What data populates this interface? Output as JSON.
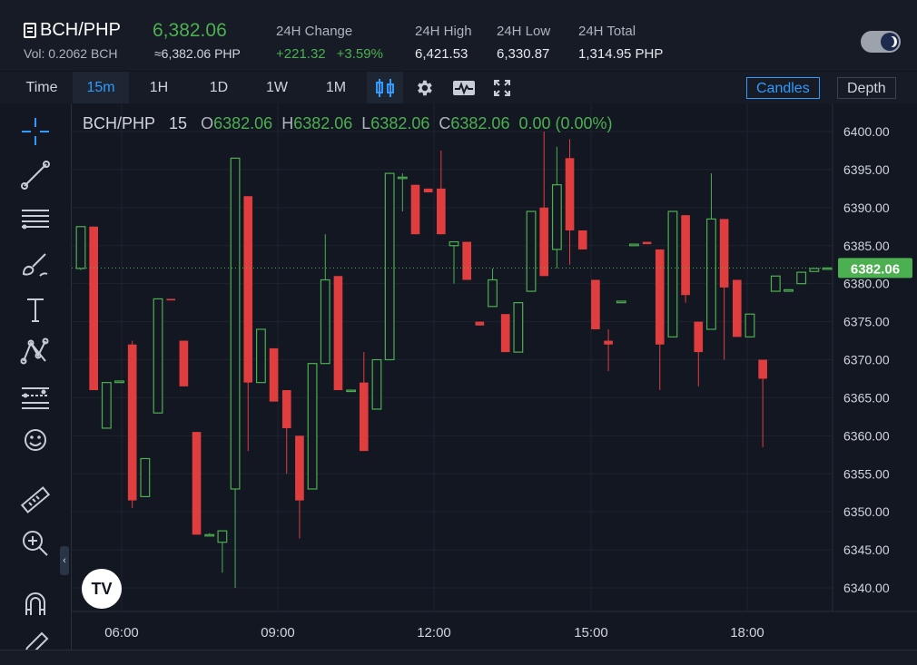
{
  "header": {
    "pair": "BCH/PHP",
    "price": "6,382.06",
    "volume": "Vol: 0.2062 BCH",
    "approx": "≈6,382.06 PHP",
    "change_label": "24H Change",
    "change_abs": "+221.32",
    "change_pct": "+3.59%",
    "high_label": "24H High",
    "high_value": "6,421.53",
    "low_label": "24H Low",
    "low_value": "6,330.87",
    "total_label": "24H Total",
    "total_value": "1,314.95 PHP"
  },
  "toolbar": {
    "intervals": [
      "Time",
      "15m",
      "1H",
      "1D",
      "1W",
      "1M"
    ],
    "active_interval": "15m",
    "candles_label": "Candles",
    "depth_label": "Depth"
  },
  "legend": {
    "symbol": "BCH/PHP",
    "interval": "15",
    "o_label": "O",
    "o_value": "6382.06",
    "h_label": "H",
    "h_value": "6382.06",
    "l_label": "L",
    "l_value": "6382.06",
    "c_label": "C",
    "c_value": "6382.06",
    "change": "0.00 (0.00%)"
  },
  "colors": {
    "up": "#4caf50",
    "down": "#e03e3e",
    "accent": "#2f9bff",
    "background": "#131722"
  },
  "chart_data": {
    "type": "candlestick",
    "pair": "BCH/PHP",
    "interval": "15",
    "ylim": [
      6337,
      6404
    ],
    "y_ticks": [
      "6400.00",
      "6395.00",
      "6390.00",
      "6385.00",
      "6380.00",
      "6375.00",
      "6370.00",
      "6365.00",
      "6360.00",
      "6355.00",
      "6350.00",
      "6345.00",
      "6340.00"
    ],
    "x_ticks": [
      "06:00",
      "09:00",
      "12:00",
      "15:00",
      "18:00"
    ],
    "last_price_label": "6382.06",
    "last_price": 6382.06,
    "candles": [
      {
        "o": 6382.0,
        "h": 6387.5,
        "l": 6381.8,
        "c": 6387.5
      },
      {
        "o": 6387.5,
        "h": 6387.5,
        "l": 6366.0,
        "c": 6366.0
      },
      {
        "o": 6361.0,
        "h": 6367.0,
        "l": 6361.0,
        "c": 6367.0
      },
      {
        "o": 6367.0,
        "h": 6367.2,
        "l": 6367.0,
        "c": 6367.2
      },
      {
        "o": 6372.0,
        "h": 6372.5,
        "l": 6350.5,
        "c": 6351.5
      },
      {
        "o": 6352.0,
        "h": 6357.0,
        "l": 6352.0,
        "c": 6357.0
      },
      {
        "o": 6363.0,
        "h": 6378.0,
        "l": 6363.0,
        "c": 6378.0
      },
      {
        "o": 6378.0,
        "h": 6378.0,
        "l": 6377.8,
        "c": 6377.8
      },
      {
        "o": 6372.5,
        "h": 6372.5,
        "l": 6366.5,
        "c": 6366.5
      },
      {
        "o": 6360.5,
        "h": 6360.5,
        "l": 6347.0,
        "c": 6347.0
      },
      {
        "o": 6347.0,
        "h": 6347.2,
        "l": 6347.0,
        "c": 6347.0
      },
      {
        "o": 6346.0,
        "h": 6347.5,
        "l": 6342.0,
        "c": 6347.5
      },
      {
        "o": 6353.0,
        "h": 6396.5,
        "l": 6340.0,
        "c": 6396.5
      },
      {
        "o": 6391.5,
        "h": 6391.5,
        "l": 6358.0,
        "c": 6367.0
      },
      {
        "o": 6367.0,
        "h": 6374.0,
        "l": 6367.0,
        "c": 6374.0
      },
      {
        "o": 6371.5,
        "h": 6371.5,
        "l": 6364.5,
        "c": 6364.5
      },
      {
        "o": 6366.0,
        "h": 6366.0,
        "l": 6355.0,
        "c": 6361.0
      },
      {
        "o": 6360.0,
        "h": 6360.0,
        "l": 6346.5,
        "c": 6351.5
      },
      {
        "o": 6353.0,
        "h": 6369.5,
        "l": 6353.0,
        "c": 6369.5
      },
      {
        "o": 6369.5,
        "h": 6386.5,
        "l": 6369.5,
        "c": 6380.5
      },
      {
        "o": 6381.0,
        "h": 6381.0,
        "l": 6366.0,
        "c": 6366.0
      },
      {
        "o": 6366.0,
        "h": 6366.0,
        "l": 6366.0,
        "c": 6366.0
      },
      {
        "o": 6367.0,
        "h": 6371.0,
        "l": 6358.0,
        "c": 6358.0
      },
      {
        "o": 6363.5,
        "h": 6370.0,
        "l": 6363.5,
        "c": 6370.0
      },
      {
        "o": 6370.0,
        "h": 6394.5,
        "l": 6370.0,
        "c": 6394.5
      },
      {
        "o": 6394.0,
        "h": 6394.5,
        "l": 6389.5,
        "c": 6394.0
      },
      {
        "o": 6393.0,
        "h": 6393.0,
        "l": 6386.5,
        "c": 6386.5
      },
      {
        "o": 6392.5,
        "h": 6392.5,
        "l": 6392.0,
        "c": 6392.0
      },
      {
        "o": 6392.5,
        "h": 6397.5,
        "l": 6386.5,
        "c": 6386.5
      },
      {
        "o": 6385.0,
        "h": 6385.5,
        "l": 6380.0,
        "c": 6385.5
      },
      {
        "o": 6385.5,
        "h": 6385.5,
        "l": 6380.5,
        "c": 6380.5
      },
      {
        "o": 6375.0,
        "h": 6375.0,
        "l": 6374.5,
        "c": 6374.5
      },
      {
        "o": 6377.0,
        "h": 6382.0,
        "l": 6377.0,
        "c": 6380.5
      },
      {
        "o": 6376.0,
        "h": 6376.0,
        "l": 6371.0,
        "c": 6371.0
      },
      {
        "o": 6371.0,
        "h": 6377.5,
        "l": 6371.0,
        "c": 6377.5
      },
      {
        "o": 6379.0,
        "h": 6389.5,
        "l": 6379.0,
        "c": 6389.5
      },
      {
        "o": 6390.0,
        "h": 6400.0,
        "l": 6381.0,
        "c": 6381.0
      },
      {
        "o": 6384.5,
        "h": 6398.0,
        "l": 6382.0,
        "c": 6393.0
      },
      {
        "o": 6396.5,
        "h": 6399.0,
        "l": 6382.5,
        "c": 6387.0
      },
      {
        "o": 6387.0,
        "h": 6387.0,
        "l": 6384.5,
        "c": 6384.5
      },
      {
        "o": 6380.5,
        "h": 6380.5,
        "l": 6374.0,
        "c": 6374.0
      },
      {
        "o": 6372.5,
        "h": 6374.0,
        "l": 6368.5,
        "c": 6372.0
      },
      {
        "o": 6377.5,
        "h": 6377.7,
        "l": 6377.5,
        "c": 6377.7
      },
      {
        "o": 6385.0,
        "h": 6385.2,
        "l": 6385.0,
        "c": 6385.2
      },
      {
        "o": 6385.5,
        "h": 6385.5,
        "l": 6385.2,
        "c": 6385.2
      },
      {
        "o": 6384.5,
        "h": 6384.5,
        "l": 6366.0,
        "c": 6372.0
      },
      {
        "o": 6373.0,
        "h": 6389.5,
        "l": 6373.0,
        "c": 6389.5
      },
      {
        "o": 6389.0,
        "h": 6389.0,
        "l": 6377.5,
        "c": 6378.5
      },
      {
        "o": 6375.0,
        "h": 6375.0,
        "l": 6366.5,
        "c": 6371.0
      },
      {
        "o": 6374.0,
        "h": 6394.5,
        "l": 6374.0,
        "c": 6388.5
      },
      {
        "o": 6388.5,
        "h": 6388.5,
        "l": 6370.0,
        "c": 6379.5
      },
      {
        "o": 6380.5,
        "h": 6380.5,
        "l": 6373.0,
        "c": 6373.0
      },
      {
        "o": 6373.0,
        "h": 6376.0,
        "l": 6373.0,
        "c": 6376.0
      },
      {
        "o": 6370.0,
        "h": 6370.0,
        "l": 6358.5,
        "c": 6367.5
      },
      {
        "o": 6379.0,
        "h": 6381.0,
        "l": 6379.0,
        "c": 6381.0
      },
      {
        "o": 6379.0,
        "h": 6379.2,
        "l": 6379.0,
        "c": 6379.2
      },
      {
        "o": 6380.0,
        "h": 6381.5,
        "l": 6380.0,
        "c": 6381.5
      },
      {
        "o": 6381.6,
        "h": 6382.0,
        "l": 6381.6,
        "c": 6382.0
      },
      {
        "o": 6382.0,
        "h": 6382.06,
        "l": 6382.0,
        "c": 6382.06
      }
    ]
  }
}
